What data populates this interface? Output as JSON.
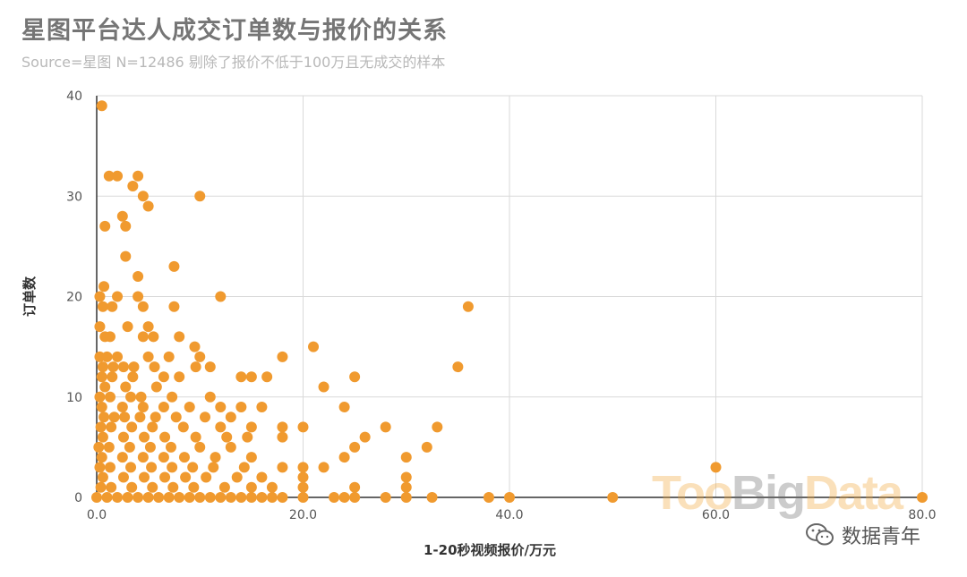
{
  "header": {
    "title": "星图平台达人成交订单数与报价的关系",
    "subtitle": "Source=星图 N=12486 剔除了报价不低于100万且无成交的样本"
  },
  "watermark": {
    "part1": "Too",
    "part2": "Big",
    "part3": "Data",
    "part1_color": "#f2a93b",
    "part2_color": "#6e6e6e"
  },
  "brand": {
    "icon": "wechat-icon",
    "label": "数据青年"
  },
  "chart_data": {
    "type": "scatter",
    "title": "星图平台达人成交订单数与报价的关系",
    "subtitle": "Source=星图 N=12486 剔除了报价不低于100万且无成交的样本",
    "xlabel": "1-20秒视频报价/万元",
    "ylabel": "订单数",
    "xlim": [
      0,
      80
    ],
    "ylim": [
      0,
      40
    ],
    "x_ticks": [
      "0.0",
      "20.0",
      "40.0",
      "60.0",
      "80.0"
    ],
    "y_ticks": [
      "0",
      "10",
      "20",
      "30",
      "40"
    ],
    "grid": true,
    "legend": "none",
    "color": "#f09a2f",
    "points": [
      [
        0.5,
        39
      ],
      [
        1.2,
        32
      ],
      [
        2,
        32
      ],
      [
        4,
        32
      ],
      [
        3.5,
        31
      ],
      [
        4.5,
        30
      ],
      [
        10,
        30
      ],
      [
        5,
        29
      ],
      [
        2.5,
        28
      ],
      [
        0.8,
        27
      ],
      [
        2.8,
        27
      ],
      [
        2.8,
        24
      ],
      [
        7.5,
        23
      ],
      [
        4,
        22
      ],
      [
        0.7,
        21
      ],
      [
        0.3,
        20
      ],
      [
        2,
        20
      ],
      [
        4,
        20
      ],
      [
        12,
        20
      ],
      [
        0.6,
        19
      ],
      [
        1.5,
        19
      ],
      [
        4.5,
        19
      ],
      [
        7.5,
        19
      ],
      [
        36,
        19
      ],
      [
        0.3,
        17
      ],
      [
        3,
        17
      ],
      [
        5,
        17
      ],
      [
        0.8,
        16
      ],
      [
        1.3,
        16
      ],
      [
        4.5,
        16
      ],
      [
        8,
        16
      ],
      [
        5.5,
        16
      ],
      [
        9.5,
        15
      ],
      [
        21,
        15
      ],
      [
        0.3,
        14
      ],
      [
        1,
        14
      ],
      [
        2,
        14
      ],
      [
        5,
        14
      ],
      [
        7,
        14
      ],
      [
        10,
        14
      ],
      [
        18,
        14
      ],
      [
        0.6,
        13
      ],
      [
        1.6,
        13
      ],
      [
        2.6,
        13
      ],
      [
        3.6,
        13
      ],
      [
        5.6,
        13
      ],
      [
        9.6,
        13
      ],
      [
        11,
        13
      ],
      [
        35,
        13
      ],
      [
        0.5,
        12
      ],
      [
        1.5,
        12
      ],
      [
        3.5,
        12
      ],
      [
        6.5,
        12
      ],
      [
        8,
        12
      ],
      [
        14,
        12
      ],
      [
        15,
        12
      ],
      [
        16.5,
        12
      ],
      [
        25,
        12
      ],
      [
        0.8,
        11
      ],
      [
        2.8,
        11
      ],
      [
        5.8,
        11
      ],
      [
        22,
        11
      ],
      [
        0.3,
        10
      ],
      [
        1.3,
        10
      ],
      [
        3.3,
        10
      ],
      [
        4.3,
        10
      ],
      [
        7.3,
        10
      ],
      [
        11,
        10
      ],
      [
        0.5,
        9
      ],
      [
        2.5,
        9
      ],
      [
        4.5,
        9
      ],
      [
        6.5,
        9
      ],
      [
        9,
        9
      ],
      [
        12,
        9
      ],
      [
        14,
        9
      ],
      [
        16,
        9
      ],
      [
        24,
        9
      ],
      [
        0.7,
        8
      ],
      [
        1.7,
        8
      ],
      [
        2.7,
        8
      ],
      [
        4.2,
        8
      ],
      [
        5.7,
        8
      ],
      [
        7.7,
        8
      ],
      [
        10.5,
        8
      ],
      [
        13,
        8
      ],
      [
        0.4,
        7
      ],
      [
        1.4,
        7
      ],
      [
        3.4,
        7
      ],
      [
        5.4,
        7
      ],
      [
        8.4,
        7
      ],
      [
        12,
        7
      ],
      [
        15,
        7
      ],
      [
        18,
        7
      ],
      [
        20,
        7
      ],
      [
        28,
        7
      ],
      [
        33,
        7
      ],
      [
        0.6,
        6
      ],
      [
        2.6,
        6
      ],
      [
        4.6,
        6
      ],
      [
        6.6,
        6
      ],
      [
        9.6,
        6
      ],
      [
        12.6,
        6
      ],
      [
        14.6,
        6
      ],
      [
        18,
        6
      ],
      [
        26,
        6
      ],
      [
        0.2,
        5
      ],
      [
        1.2,
        5
      ],
      [
        3.2,
        5
      ],
      [
        5.2,
        5
      ],
      [
        7.2,
        5
      ],
      [
        10,
        5
      ],
      [
        13,
        5
      ],
      [
        25,
        5
      ],
      [
        32,
        5
      ],
      [
        0.5,
        4
      ],
      [
        2.5,
        4
      ],
      [
        4.5,
        4
      ],
      [
        6.5,
        4
      ],
      [
        8.5,
        4
      ],
      [
        11.5,
        4
      ],
      [
        15,
        4
      ],
      [
        24,
        4
      ],
      [
        30,
        4
      ],
      [
        0.3,
        3
      ],
      [
        1.3,
        3
      ],
      [
        3.3,
        3
      ],
      [
        5.3,
        3
      ],
      [
        7.3,
        3
      ],
      [
        9.3,
        3
      ],
      [
        11.3,
        3
      ],
      [
        14.3,
        3
      ],
      [
        18,
        3
      ],
      [
        20,
        3
      ],
      [
        22,
        3
      ],
      [
        60,
        3
      ],
      [
        0.6,
        2
      ],
      [
        2.6,
        2
      ],
      [
        4.6,
        2
      ],
      [
        6.6,
        2
      ],
      [
        8.6,
        2
      ],
      [
        10.6,
        2
      ],
      [
        13.6,
        2
      ],
      [
        16,
        2
      ],
      [
        20,
        2
      ],
      [
        30,
        2
      ],
      [
        0.4,
        1
      ],
      [
        1.4,
        1
      ],
      [
        3.4,
        1
      ],
      [
        5.4,
        1
      ],
      [
        7.4,
        1
      ],
      [
        9.4,
        1
      ],
      [
        12.4,
        1
      ],
      [
        15,
        1
      ],
      [
        17,
        1
      ],
      [
        20,
        1
      ],
      [
        25,
        1
      ],
      [
        30,
        1
      ],
      [
        0,
        0
      ],
      [
        1,
        0
      ],
      [
        2,
        0
      ],
      [
        3,
        0
      ],
      [
        4,
        0
      ],
      [
        5,
        0
      ],
      [
        6,
        0
      ],
      [
        7,
        0
      ],
      [
        8,
        0
      ],
      [
        9,
        0
      ],
      [
        10,
        0
      ],
      [
        11,
        0
      ],
      [
        12,
        0
      ],
      [
        13,
        0
      ],
      [
        14,
        0
      ],
      [
        15,
        0
      ],
      [
        16,
        0
      ],
      [
        17,
        0
      ],
      [
        18,
        0
      ],
      [
        20,
        0
      ],
      [
        23,
        0
      ],
      [
        24,
        0
      ],
      [
        25,
        0
      ],
      [
        28,
        0
      ],
      [
        30,
        0
      ],
      [
        32.5,
        0
      ],
      [
        38,
        0
      ],
      [
        40,
        0
      ],
      [
        50,
        0
      ],
      [
        80,
        0
      ]
    ]
  }
}
